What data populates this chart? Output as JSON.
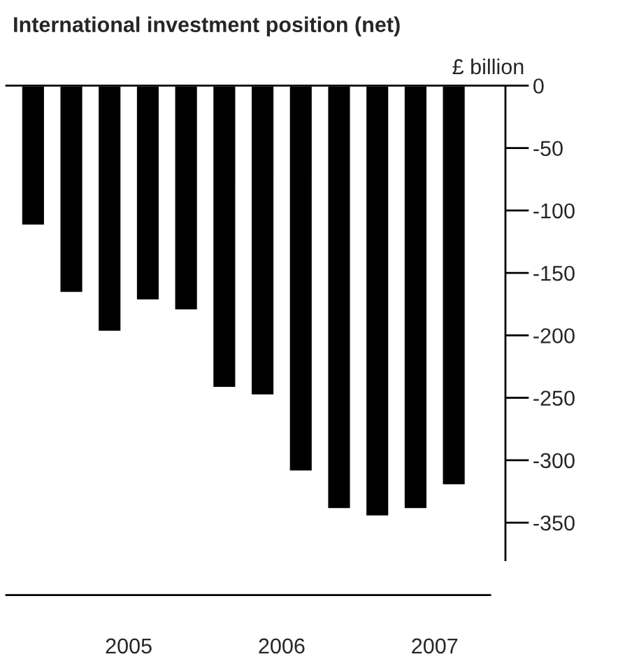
{
  "chart_data": {
    "type": "bar",
    "title": "International investment position (net)",
    "ylabel": "£ billion",
    "categories": [
      null,
      null,
      "2005",
      null,
      null,
      null,
      "2006",
      null,
      null,
      null,
      "2007",
      null
    ],
    "values": [
      -112,
      -166,
      -197,
      -172,
      -180,
      -242,
      -248,
      -309,
      -339,
      -345,
      -339,
      -320
    ],
    "color": "#000000",
    "ylim": [
      -380,
      0
    ],
    "yticks": [
      0,
      -50,
      -100,
      -150,
      -200,
      -250,
      -300,
      -350
    ],
    "grid": false,
    "legend": false
  }
}
